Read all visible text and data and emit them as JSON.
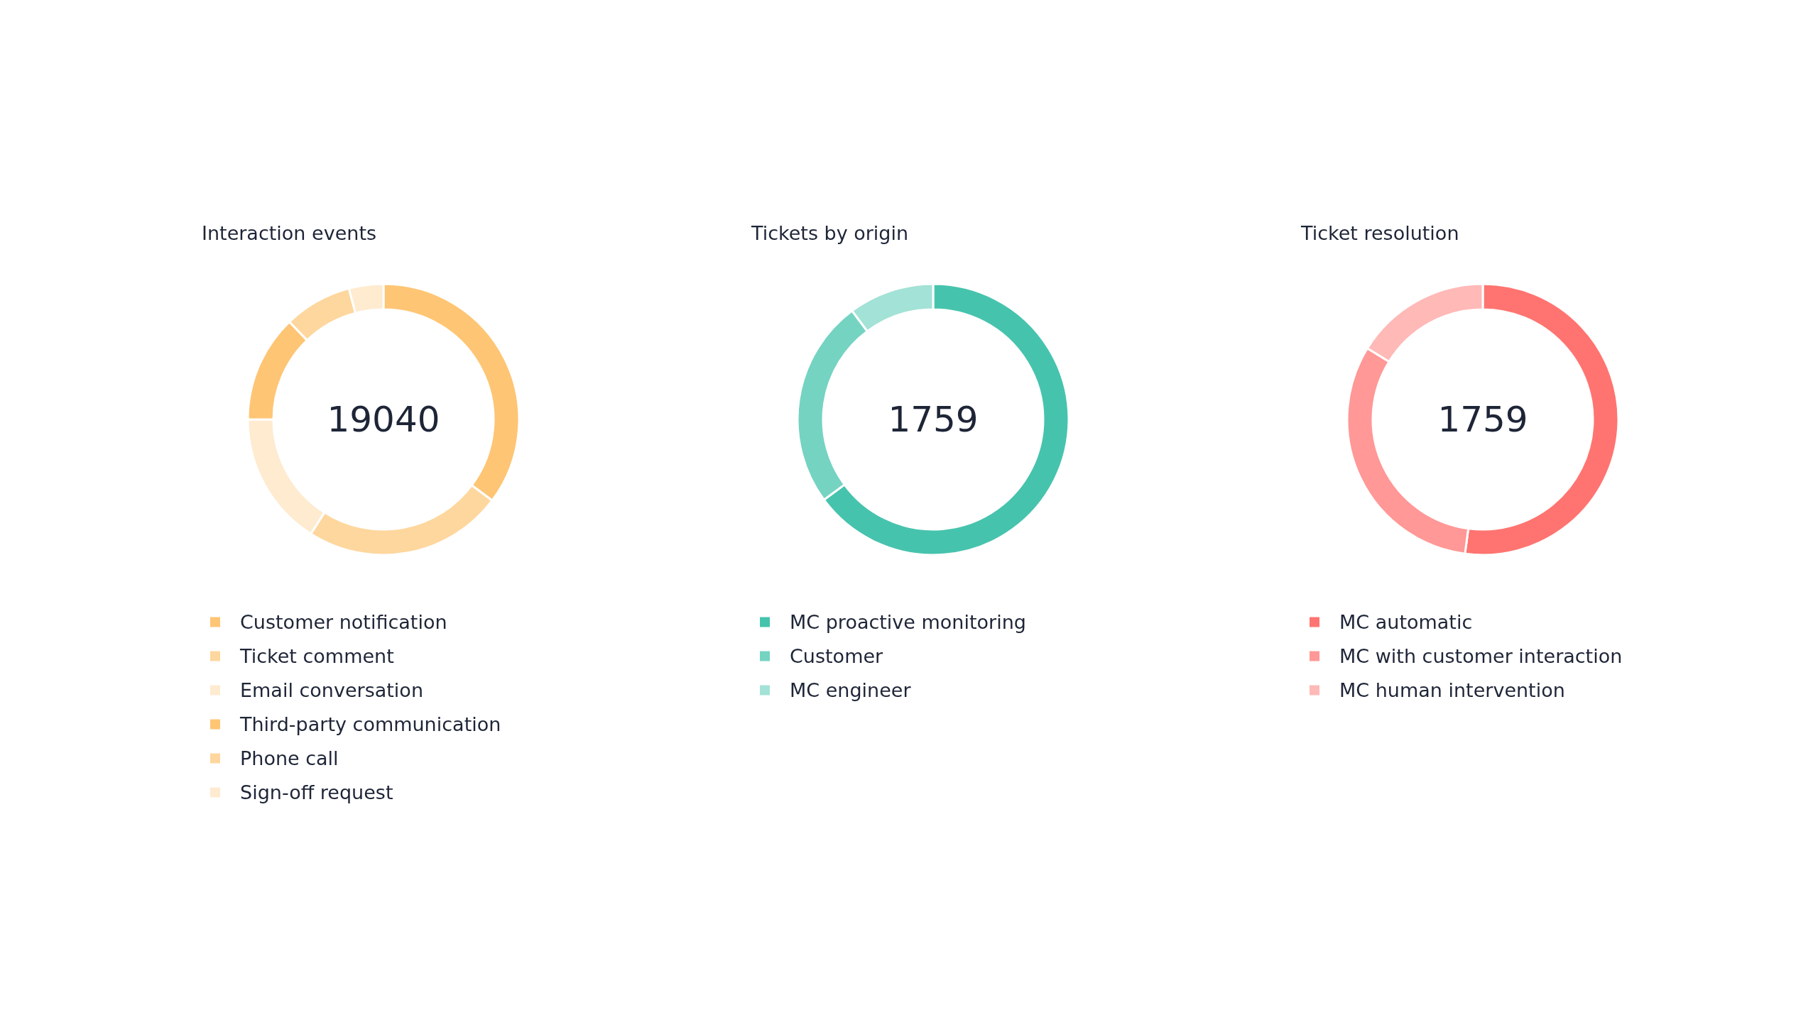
{
  "chart_data": [
    {
      "type": "donut",
      "title": "Interaction events",
      "categories": [
        "Customer notification",
        "Ticket comment",
        "Email conversation",
        "Third-party communication",
        "Phone call",
        "Sign-off request"
      ],
      "values": [
        35.2,
        23.8,
        16.0,
        12.8,
        8.1,
        4.1
      ],
      "colors": [
        "#fec574",
        "#fed79e",
        "#feebd0",
        "#fec574",
        "#fed79e",
        "#feebd0"
      ],
      "annotations": [
        "19040"
      ],
      "legend": "bottom"
    },
    {
      "type": "donut",
      "title": "Tickets by origin",
      "categories": [
        "MC proactive monitoring",
        "Customer",
        "MC engineer"
      ],
      "values": [
        64.9,
        24.9,
        10.2
      ],
      "colors": [
        "#46c3ad",
        "#75d3c2",
        "#a3e2d7"
      ],
      "annotations": [
        "1759"
      ],
      "legend": "bottom"
    },
    {
      "type": "donut",
      "title": "Ticket resolution",
      "categories": [
        "MC automatic",
        "MC with customer interaction",
        "MC human intervention"
      ],
      "values": [
        52.1,
        31.7,
        16.2
      ],
      "colors": [
        "#ff7470",
        "#ff9896",
        "#ffb9b7"
      ],
      "annotations": [
        "1759"
      ],
      "legend": "bottom"
    }
  ]
}
